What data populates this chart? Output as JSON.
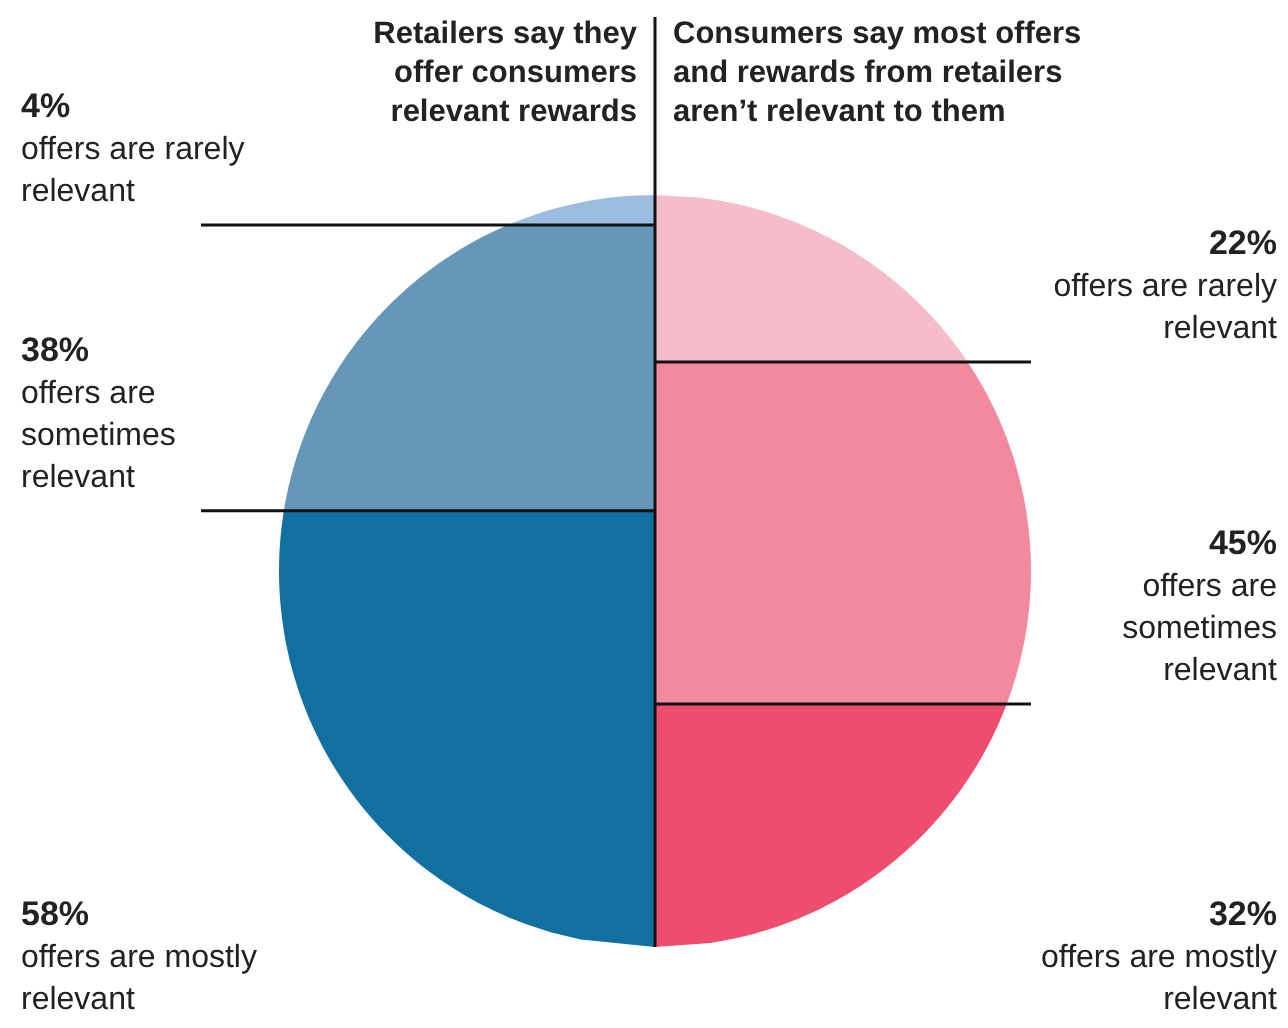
{
  "chart_data": {
    "type": "other",
    "categories": [
      "offers are rarely relevant",
      "offers are sometimes relevant",
      "offers are mostly relevant"
    ],
    "series": [
      {
        "name": "Retailers say they offer consumers relevant rewards",
        "colors": [
          "#9dbde0",
          "#6497b8",
          "#1270a0"
        ],
        "values": [
          4,
          38,
          58
        ],
        "value_labels": [
          "4%",
          "38%",
          "58%"
        ]
      },
      {
        "name": "Consumers say most offers and rewards from retailers aren’t relevant to them",
        "colors": [
          "#f5bccb",
          "#f28a9e",
          "#ee4d6d"
        ],
        "values": [
          22,
          45,
          32
        ],
        "value_labels": [
          "22%",
          "45%",
          "32%"
        ]
      }
    ]
  }
}
